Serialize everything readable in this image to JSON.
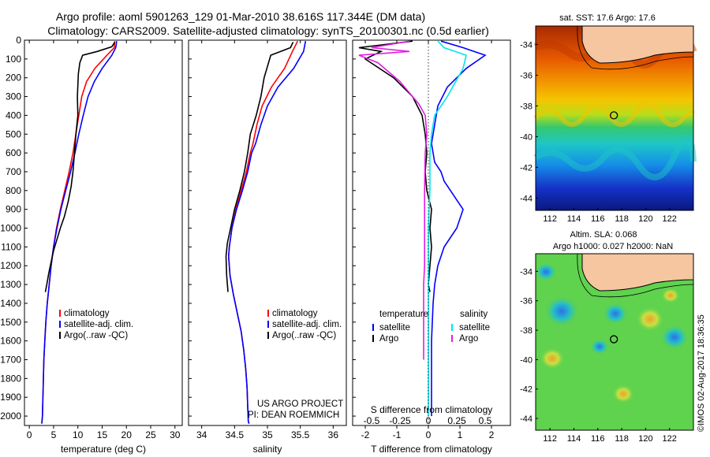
{
  "header": {
    "line1": "Argo profile: aoml 5901263_129 01-Mar-2010 38.616S 117.344E (DM data)",
    "line2": "Climatology: CARS2009. Satellite-adjusted climatology: synTS_20100301.nc (0.5d earlier)"
  },
  "credit": "©IMOS 02-Aug-2017 18:36:35",
  "colors": {
    "climatology": "#ff0000",
    "satellite": "#0000ff",
    "argo": "#000000",
    "sal_satellite": "#00e5ee",
    "sal_argo": "#e020e0",
    "land": "#f5c6a0",
    "float_marker": "#000000"
  },
  "chart_data": [
    {
      "type": "line",
      "id": "temperature_profile",
      "xlabel": "temperature (deg C)",
      "ylabel": "",
      "xlim": [
        -1,
        31.5
      ],
      "ylim": [
        2050,
        0
      ],
      "xticks": [
        0,
        5,
        10,
        15,
        20,
        25,
        30
      ],
      "yticks": [
        0,
        100,
        200,
        300,
        400,
        500,
        600,
        700,
        800,
        900,
        1000,
        1100,
        1200,
        1300,
        1400,
        1500,
        1600,
        1700,
        1800,
        1900,
        2000
      ],
      "grid": false,
      "legend": {
        "placement": "lower-left",
        "entries": [
          "climatology",
          "satellite-adj. clim.",
          "Argo(..raw -QC)"
        ]
      },
      "series": [
        {
          "name": "climatology",
          "color": "#ff0000",
          "x": [
            17.6,
            17.5,
            16.0,
            13.5,
            11.8,
            10.8,
            10.2,
            9.6,
            9.0,
            8.2,
            7.3,
            6.4,
            5.6,
            5.0,
            4.5,
            4.1,
            3.7,
            3.4,
            3.2,
            3.0,
            2.9,
            2.8,
            2.7,
            2.6,
            2.55
          ],
          "y": [
            5,
            40,
            80,
            150,
            220,
            300,
            400,
            500,
            600,
            700,
            800,
            900,
            1000,
            1100,
            1200,
            1300,
            1400,
            1500,
            1600,
            1700,
            1800,
            1900,
            2000,
            2030,
            2040
          ]
        },
        {
          "name": "satellite-adj. clim.",
          "color": "#0000ff",
          "x": [
            18.0,
            17.8,
            17.0,
            15.0,
            13.4,
            12.1,
            11.1,
            10.2,
            9.4,
            8.5,
            7.5,
            6.5,
            5.7,
            5.0,
            4.5,
            4.1,
            3.7,
            3.4,
            3.2,
            3.0,
            2.9,
            2.8,
            2.7,
            2.6,
            2.55
          ],
          "y": [
            5,
            40,
            80,
            150,
            220,
            300,
            400,
            500,
            600,
            700,
            800,
            900,
            1000,
            1100,
            1200,
            1300,
            1400,
            1500,
            1600,
            1700,
            1800,
            1900,
            2000,
            2030,
            2040
          ]
        },
        {
          "name": "Argo(..raw -QC)",
          "color": "#000000",
          "x": [
            17.6,
            17.0,
            14.0,
            11.0,
            10.4,
            10.1,
            9.9,
            10.0,
            9.6,
            9.3,
            9.0,
            8.6,
            8.0,
            7.2,
            6.4,
            5.7,
            5.0,
            4.5,
            4.0,
            3.6,
            3.3
          ],
          "y": [
            10,
            35,
            60,
            80,
            120,
            180,
            300,
            400,
            500,
            600,
            700,
            780,
            860,
            940,
            1000,
            1060,
            1120,
            1180,
            1240,
            1300,
            1340
          ]
        }
      ]
    },
    {
      "type": "line",
      "id": "salinity_profile",
      "xlabel": "salinity",
      "ylabel": "",
      "xlim": [
        33.8,
        36.2
      ],
      "ylim": [
        2050,
        0
      ],
      "xticks": [
        34,
        34.5,
        35,
        35.5,
        36
      ],
      "grid": false,
      "legend": {
        "placement": "lower-left",
        "entries": [
          "climatology",
          "satellite-adj. clim.",
          "Argo(..raw -QC)"
        ]
      },
      "annotation": [
        "US ARGO PROJECT",
        "PI: DEAN ROEMMICH"
      ],
      "series": [
        {
          "name": "climatology",
          "color": "#ff0000",
          "x": [
            35.46,
            35.38,
            35.26,
            35.06,
            34.92,
            34.84,
            34.78,
            34.74,
            34.68,
            34.6,
            34.52,
            34.46,
            34.42,
            34.41,
            34.43,
            34.48,
            34.54,
            34.6,
            34.64,
            34.67,
            34.69,
            34.7,
            34.71,
            34.72
          ],
          "y": [
            5,
            60,
            150,
            250,
            350,
            450,
            550,
            600,
            700,
            800,
            900,
            1000,
            1100,
            1150,
            1250,
            1350,
            1450,
            1550,
            1650,
            1750,
            1850,
            1950,
            2030,
            2040
          ]
        },
        {
          "name": "satellite-adj. clim.",
          "color": "#0000ff",
          "x": [
            35.58,
            35.55,
            35.4,
            35.16,
            35.0,
            34.9,
            34.82,
            34.76,
            34.7,
            34.62,
            34.53,
            34.46,
            34.42,
            34.41,
            34.43,
            34.48,
            34.54,
            34.6,
            34.64,
            34.67,
            34.69,
            34.7,
            34.71,
            34.72
          ],
          "y": [
            5,
            60,
            150,
            250,
            350,
            450,
            550,
            600,
            700,
            800,
            900,
            1000,
            1100,
            1150,
            1250,
            1350,
            1450,
            1550,
            1650,
            1750,
            1850,
            1950,
            2030,
            2040
          ]
        },
        {
          "name": "Argo(..raw -QC)",
          "color": "#000000",
          "x": [
            35.39,
            35.35,
            35.05,
            34.95,
            34.9,
            34.83,
            34.74,
            34.7,
            34.65,
            34.58,
            34.5,
            34.44,
            34.39,
            34.37,
            34.38,
            34.4
          ],
          "y": [
            10,
            40,
            80,
            200,
            300,
            400,
            500,
            600,
            700,
            800,
            900,
            1000,
            1080,
            1150,
            1250,
            1340
          ]
        }
      ]
    },
    {
      "type": "line",
      "id": "difference_profile",
      "xlabel": "T difference from climatology",
      "xlabel_top": "S difference from climatology",
      "xlim": [
        -2.4,
        2.6
      ],
      "ylim": [
        2050,
        0
      ],
      "xticks": [
        -2,
        -1,
        0,
        1,
        2
      ],
      "xticks_top": [
        {
          "label": "-0.5",
          "value": -1.8
        },
        {
          "label": "-0.25",
          "value": -0.9
        },
        {
          "label": "0",
          "value": 0
        },
        {
          "label": "0.25",
          "value": 0.9
        },
        {
          "label": "0.5",
          "value": 1.8
        }
      ],
      "zero_line": "dotted",
      "grid": false,
      "legend": {
        "placement": "lower-center",
        "groups": [
          {
            "title": "temperature",
            "entries": [
              "satellite",
              "Argo"
            ]
          },
          {
            "title": "salinity",
            "entries": [
              "satellite",
              "Argo"
            ]
          }
        ]
      },
      "series": [
        {
          "name": "satellite",
          "group": "temperature",
          "color": "#0000ff",
          "x": [
            0.4,
            1.1,
            1.8,
            1.2,
            0.6,
            0.3,
            0.2,
            0.1,
            0.2,
            0.4,
            0.5,
            0.7,
            0.9,
            1.1,
            0.9,
            0.5,
            0.3,
            0.2,
            0.15,
            0.1,
            0.1,
            0.1
          ],
          "y": [
            5,
            40,
            80,
            150,
            250,
            350,
            450,
            550,
            650,
            700,
            750,
            800,
            850,
            900,
            1000,
            1100,
            1200,
            1300,
            1400,
            1600,
            1800,
            2000
          ]
        },
        {
          "name": "Argo",
          "group": "temperature",
          "color": "#000000",
          "x": [
            -0.5,
            -2.2,
            -1.5,
            -2.0,
            -1.1,
            -0.5,
            -0.2,
            -0.1,
            -0.05,
            -0.1,
            -0.05,
            0.1,
            0.05,
            0.1,
            0.05,
            0.0,
            0.05
          ],
          "y": [
            5,
            40,
            60,
            100,
            200,
            300,
            400,
            500,
            600,
            700,
            800,
            900,
            1000,
            1100,
            1200,
            1300,
            1340
          ]
        },
        {
          "name": "satellite",
          "group": "salinity",
          "color": "#00e5ee",
          "x": [
            0.3,
            0.5,
            1.2,
            1.1,
            0.6,
            0.2,
            0.1,
            0.05,
            0.05,
            0.0,
            0.0,
            0.0,
            0.0
          ],
          "y": [
            5,
            40,
            80,
            150,
            300,
            400,
            500,
            600,
            800,
            1000,
            1200,
            1600,
            2000
          ]
        },
        {
          "name": "Argo",
          "group": "salinity",
          "color": "#e020e0",
          "x": [
            -0.6,
            -1.8,
            -0.6,
            -2.2,
            -1.6,
            -0.9,
            -0.3,
            -0.1,
            -0.05,
            -0.1,
            -0.12,
            -0.12,
            -0.12,
            -0.15,
            -0.15
          ],
          "y": [
            5,
            40,
            60,
            80,
            120,
            220,
            340,
            400,
            500,
            600,
            800,
            1000,
            1200,
            1300,
            1700
          ]
        }
      ]
    },
    {
      "type": "heatmap",
      "id": "sst_map",
      "title": "sat. SST: 17.6  Argo: 17.6",
      "xlim": [
        110.8,
        124
      ],
      "ylim": [
        -44.8,
        -32.8
      ],
      "xticks": [
        112,
        114,
        116,
        118,
        120,
        122
      ],
      "yticks": [
        -34,
        -36,
        -38,
        -40,
        -42,
        -44
      ],
      "float_position": {
        "lon": 117.344,
        "lat": -38.616
      }
    },
    {
      "type": "heatmap",
      "id": "sla_map",
      "title": [
        "Altim. SLA: 0.068",
        "Argo h1000: 0.027 h2000: NaN"
      ],
      "xlim": [
        110.8,
        124
      ],
      "ylim": [
        -44.8,
        -32.8
      ],
      "xticks": [
        112,
        114,
        116,
        118,
        120,
        122
      ],
      "yticks": [
        -34,
        -36,
        -38,
        -40,
        -42,
        -44
      ],
      "float_position": {
        "lon": 117.344,
        "lat": -38.616
      }
    }
  ]
}
